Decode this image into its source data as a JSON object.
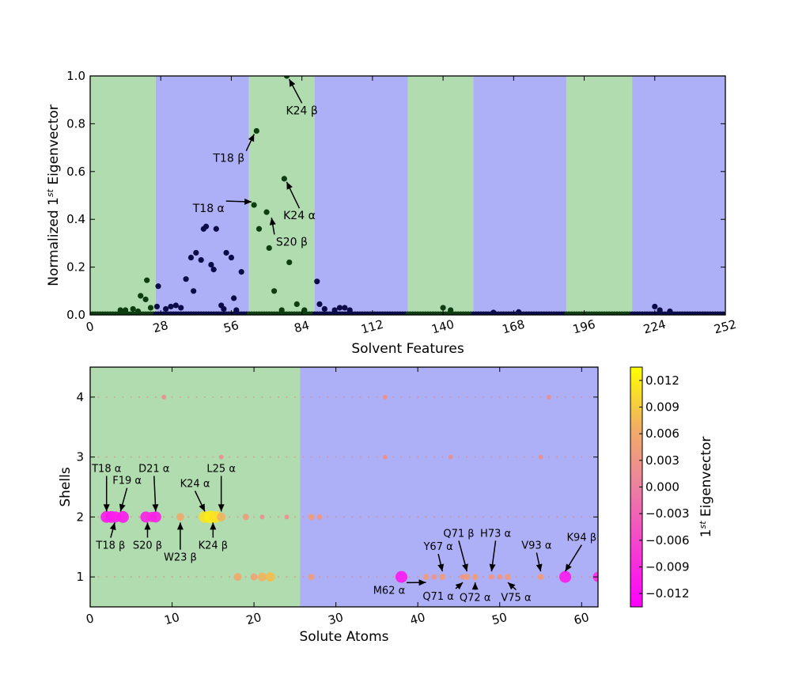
{
  "chart_data": [
    {
      "type": "scatter",
      "xlabel": "Solvent Features",
      "ylabel": "Normalized 1st Eigenvector",
      "ylabel_parts": [
        "Normalized 1",
        "st",
        " Eigenvector"
      ],
      "xlim": [
        0,
        252
      ],
      "ylim": [
        0,
        1.0
      ],
      "xticks": [
        0,
        28,
        56,
        84,
        112,
        140,
        168,
        196,
        224,
        252
      ],
      "yticks": [
        "0.0",
        "0.2",
        "0.4",
        "0.6",
        "0.8",
        "1.0"
      ],
      "bands": [
        {
          "from": 0,
          "to": 26,
          "color": "#b0dcb0"
        },
        {
          "from": 26,
          "to": 63,
          "color": "#aeb0f7"
        },
        {
          "from": 63,
          "to": 89,
          "color": "#b0dcb0"
        },
        {
          "from": 89,
          "to": 126,
          "color": "#aeb0f7"
        },
        {
          "from": 126,
          "to": 152,
          "color": "#b0dcb0"
        },
        {
          "from": 152,
          "to": 189,
          "color": "#aeb0f7"
        },
        {
          "from": 189,
          "to": 215,
          "color": "#b0dcb0"
        },
        {
          "from": 215,
          "to": 252,
          "color": "#aeb0f7"
        }
      ],
      "points": [
        {
          "x": 20,
          "y": 0.08,
          "c": "g"
        },
        {
          "x": 22,
          "y": 0.065,
          "c": "g"
        },
        {
          "x": 22.5,
          "y": 0.145,
          "c": "g"
        },
        {
          "x": 17,
          "y": 0.025,
          "c": "g"
        },
        {
          "x": 14,
          "y": 0.02,
          "c": "g"
        },
        {
          "x": 12,
          "y": 0.02,
          "c": "g"
        },
        {
          "x": 19,
          "y": 0.015,
          "c": "g"
        },
        {
          "x": 24,
          "y": 0.03,
          "c": "g"
        },
        {
          "x": 27,
          "y": 0.12,
          "c": "b"
        },
        {
          "x": 26.5,
          "y": 0.035,
          "c": "b"
        },
        {
          "x": 30,
          "y": 0.025,
          "c": "b"
        },
        {
          "x": 32,
          "y": 0.035,
          "c": "b"
        },
        {
          "x": 34,
          "y": 0.04,
          "c": "b"
        },
        {
          "x": 38,
          "y": 0.15,
          "c": "b"
        },
        {
          "x": 40,
          "y": 0.24,
          "c": "b"
        },
        {
          "x": 41,
          "y": 0.1,
          "c": "b"
        },
        {
          "x": 42,
          "y": 0.26,
          "c": "b"
        },
        {
          "x": 44,
          "y": 0.23,
          "c": "b"
        },
        {
          "x": 45,
          "y": 0.36,
          "c": "b"
        },
        {
          "x": 46,
          "y": 0.37,
          "c": "b"
        },
        {
          "x": 48,
          "y": 0.21,
          "c": "b"
        },
        {
          "x": 49,
          "y": 0.19,
          "c": "b"
        },
        {
          "x": 50,
          "y": 0.36,
          "c": "b"
        },
        {
          "x": 52,
          "y": 0.04,
          "c": "b"
        },
        {
          "x": 54,
          "y": 0.26,
          "c": "b"
        },
        {
          "x": 56,
          "y": 0.24,
          "c": "b"
        },
        {
          "x": 57,
          "y": 0.07,
          "c": "b"
        },
        {
          "x": 60,
          "y": 0.18,
          "c": "b"
        },
        {
          "x": 53,
          "y": 0.025,
          "c": "b"
        },
        {
          "x": 36,
          "y": 0.03,
          "c": "b"
        },
        {
          "x": 58,
          "y": 0.02,
          "c": "b"
        },
        {
          "x": 65,
          "y": 0.46,
          "c": "g"
        },
        {
          "x": 66,
          "y": 0.77,
          "c": "g"
        },
        {
          "x": 67,
          "y": 0.36,
          "c": "g"
        },
        {
          "x": 70,
          "y": 0.43,
          "c": "g"
        },
        {
          "x": 71,
          "y": 0.28,
          "c": "g"
        },
        {
          "x": 73,
          "y": 0.1,
          "c": "g"
        },
        {
          "x": 77,
          "y": 0.57,
          "c": "g"
        },
        {
          "x": 78,
          "y": 1.0,
          "c": "g"
        },
        {
          "x": 79,
          "y": 0.22,
          "c": "g"
        },
        {
          "x": 82,
          "y": 0.045,
          "c": "g"
        },
        {
          "x": 85,
          "y": 0.02,
          "c": "g"
        },
        {
          "x": 76,
          "y": 0.02,
          "c": "g"
        },
        {
          "x": 90,
          "y": 0.14,
          "c": "b"
        },
        {
          "x": 91,
          "y": 0.045,
          "c": "b"
        },
        {
          "x": 93,
          "y": 0.025,
          "c": "b"
        },
        {
          "x": 97,
          "y": 0.02,
          "c": "b"
        },
        {
          "x": 99,
          "y": 0.03,
          "c": "b"
        },
        {
          "x": 101,
          "y": 0.03,
          "c": "b"
        },
        {
          "x": 103,
          "y": 0.02,
          "c": "b"
        },
        {
          "x": 140,
          "y": 0.03,
          "c": "g"
        },
        {
          "x": 143,
          "y": 0.02,
          "c": "g"
        },
        {
          "x": 160,
          "y": 0.01,
          "c": "b"
        },
        {
          "x": 170,
          "y": 0.012,
          "c": "b"
        },
        {
          "x": 224,
          "y": 0.035,
          "c": "b"
        },
        {
          "x": 226,
          "y": 0.02,
          "c": "b"
        },
        {
          "x": 230,
          "y": 0.015,
          "c": "b"
        }
      ],
      "annotations": [
        {
          "text": "K24 β",
          "x": 78,
          "y": 1.0,
          "tx": 84,
          "ty": 0.84
        },
        {
          "text": "T18 β",
          "x": 66,
          "y": 0.77,
          "tx": 55,
          "ty": 0.64
        },
        {
          "text": "T18 α",
          "x": 65,
          "y": 0.46,
          "tx": 47,
          "ty": 0.43
        },
        {
          "text": "K24 α",
          "x": 77,
          "y": 0.57,
          "tx": 83,
          "ty": 0.4
        },
        {
          "text": "S20 β",
          "x": 71,
          "y": 0.42,
          "tx": 80,
          "ty": 0.29
        }
      ]
    },
    {
      "type": "scatter",
      "xlabel": "Solute Atoms",
      "ylabel": "Shells",
      "xlim": [
        0,
        62
      ],
      "ylim": [
        0.5,
        4.5
      ],
      "xticks": [
        0,
        10,
        20,
        30,
        40,
        50,
        60
      ],
      "yticks": [
        1,
        2,
        3,
        4
      ],
      "bands": [
        {
          "from": 0,
          "to": 25.6,
          "color": "#b0dcb0"
        },
        {
          "from": 25.6,
          "to": 62,
          "color": "#aeb0f7"
        }
      ],
      "colorbar": {
        "label": "1st Eigenvector",
        "label_parts": [
          "1",
          "st",
          " Eigenvector"
        ],
        "ticks": [
          "0.012",
          "0.009",
          "0.006",
          "0.003",
          "0.000",
          "−0.003",
          "−0.006",
          "−0.009",
          "−0.012"
        ],
        "min": -0.0135,
        "max": 0.0135
      },
      "points": [
        {
          "x": 2,
          "y": 2,
          "v": -0.011
        },
        {
          "x": 2.6,
          "y": 2,
          "v": -0.011
        },
        {
          "x": 3.1,
          "y": 2,
          "v": -0.01
        },
        {
          "x": 4,
          "y": 2,
          "v": -0.011
        },
        {
          "x": 6.8,
          "y": 2,
          "v": -0.01
        },
        {
          "x": 7.5,
          "y": 2,
          "v": -0.009
        },
        {
          "x": 8,
          "y": 2,
          "v": -0.01
        },
        {
          "x": 11,
          "y": 2,
          "v": 0.006
        },
        {
          "x": 14,
          "y": 2,
          "v": 0.011
        },
        {
          "x": 14.7,
          "y": 2,
          "v": 0.012
        },
        {
          "x": 15.3,
          "y": 2,
          "v": 0.011
        },
        {
          "x": 16,
          "y": 2,
          "v": 0.007
        },
        {
          "x": 19,
          "y": 2,
          "v": 0.004
        },
        {
          "x": 27,
          "y": 2,
          "v": 0.004
        },
        {
          "x": 28,
          "y": 2,
          "v": 0.003
        },
        {
          "x": 21,
          "y": 2,
          "v": 0.002
        },
        {
          "x": 24,
          "y": 2,
          "v": 0.002
        },
        {
          "x": 18,
          "y": 1,
          "v": 0.006
        },
        {
          "x": 20,
          "y": 1,
          "v": 0.005
        },
        {
          "x": 21,
          "y": 1,
          "v": 0.007
        },
        {
          "x": 22,
          "y": 1,
          "v": 0.008
        },
        {
          "x": 27,
          "y": 1,
          "v": 0.004
        },
        {
          "x": 38,
          "y": 1,
          "v": -0.011
        },
        {
          "x": 41,
          "y": 1,
          "v": 0.004
        },
        {
          "x": 42,
          "y": 1,
          "v": 0.003
        },
        {
          "x": 43,
          "y": 1,
          "v": 0.004
        },
        {
          "x": 45.5,
          "y": 1,
          "v": 0.003
        },
        {
          "x": 46,
          "y": 1,
          "v": 0.004
        },
        {
          "x": 47,
          "y": 1,
          "v": 0.004
        },
        {
          "x": 49,
          "y": 1,
          "v": 0.003
        },
        {
          "x": 50,
          "y": 1,
          "v": 0.003
        },
        {
          "x": 51,
          "y": 1,
          "v": 0.004
        },
        {
          "x": 55,
          "y": 1,
          "v": 0.004
        },
        {
          "x": 58,
          "y": 1,
          "v": -0.011
        },
        {
          "x": 62,
          "y": 1,
          "v": -0.009
        },
        {
          "x": 16,
          "y": 3,
          "v": 0.002
        },
        {
          "x": 36,
          "y": 3,
          "v": 0.002
        },
        {
          "x": 44,
          "y": 3,
          "v": 0.002
        },
        {
          "x": 55,
          "y": 3,
          "v": 0.002
        },
        {
          "x": 9,
          "y": 4,
          "v": 0.002
        },
        {
          "x": 36,
          "y": 4,
          "v": 0.002
        },
        {
          "x": 56,
          "y": 4,
          "v": 0.002
        }
      ],
      "annotations": [
        {
          "text": "T18 α",
          "x": 2,
          "y": 2,
          "tx": 2,
          "ty": 2.75
        },
        {
          "text": "F19 α",
          "x": 3.7,
          "y": 2,
          "tx": 4.5,
          "ty": 2.55
        },
        {
          "text": "D21 α",
          "x": 8,
          "y": 2,
          "tx": 7.8,
          "ty": 2.75
        },
        {
          "text": "K24 α",
          "x": 14,
          "y": 2,
          "tx": 12.8,
          "ty": 2.5
        },
        {
          "text": "L25 α",
          "x": 16,
          "y": 2,
          "tx": 16,
          "ty": 2.75
        },
        {
          "text": "T18 β",
          "x": 3,
          "y": 2,
          "tx": 2.5,
          "ty": 1.47
        },
        {
          "text": "S20 β",
          "x": 7,
          "y": 2,
          "tx": 7,
          "ty": 1.47
        },
        {
          "text": "W23 β",
          "x": 11,
          "y": 2,
          "tx": 11,
          "ty": 1.27
        },
        {
          "text": "K24 β",
          "x": 15,
          "y": 2,
          "tx": 15,
          "ty": 1.47
        },
        {
          "text": "Q71 β",
          "x": 46,
          "y": 1,
          "tx": 45,
          "ty": 1.67
        },
        {
          "text": "Y67 α",
          "x": 43,
          "y": 1,
          "tx": 42.5,
          "ty": 1.45
        },
        {
          "text": "H73 α",
          "x": 49,
          "y": 1,
          "tx": 49.5,
          "ty": 1.67
        },
        {
          "text": "V93 α",
          "x": 55,
          "y": 1,
          "tx": 54.5,
          "ty": 1.47
        },
        {
          "text": "K94 β",
          "x": 58,
          "y": 1,
          "tx": 60,
          "ty": 1.6
        },
        {
          "text": "M62 α",
          "x": 41,
          "y": 1,
          "tx": 36.5,
          "ty": 0.72
        },
        {
          "text": "Q71 α",
          "x": 45.5,
          "y": 1,
          "tx": 42.5,
          "ty": 0.62
        },
        {
          "text": "Q72 α",
          "x": 47,
          "y": 1,
          "tx": 47,
          "ty": 0.6
        },
        {
          "text": "V75 α",
          "x": 51,
          "y": 1,
          "tx": 52,
          "ty": 0.6
        }
      ]
    }
  ]
}
